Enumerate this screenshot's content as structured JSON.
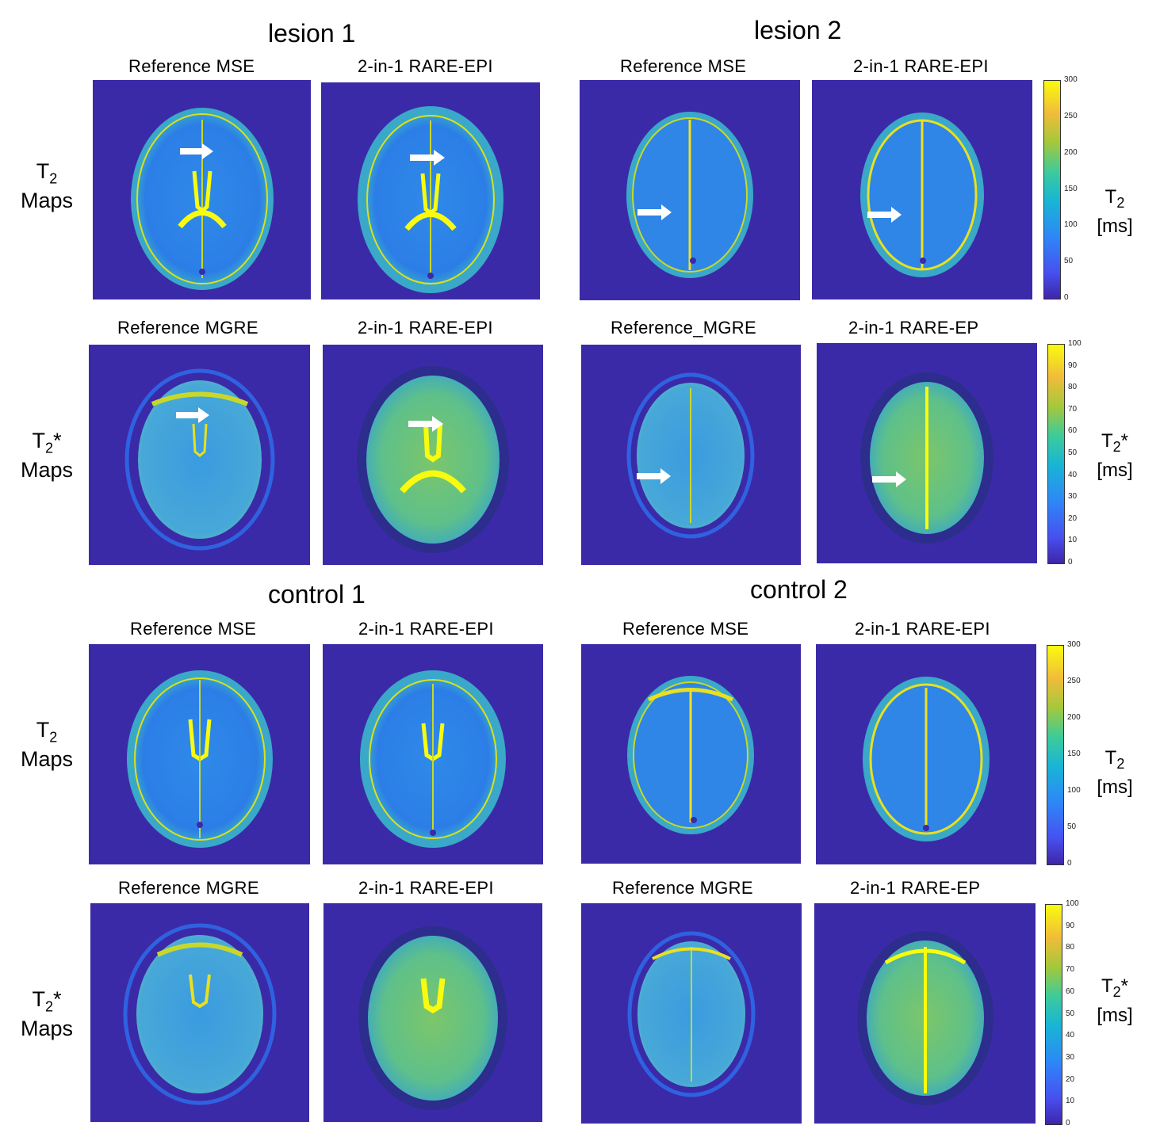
{
  "titles": {
    "lesion1": "lesion  1",
    "lesion2": "lesion 2",
    "control1": "control 1",
    "control2": "control 2"
  },
  "col_titles": {
    "l1_t2_ref": "Reference MSE",
    "l1_t2_rare": "2-in-1 RARE-EPI",
    "l2_t2_ref": "Reference MSE",
    "l2_t2_rare": "2-in-1 RARE-EPI",
    "l1_t2s_ref": "Reference MGRE",
    "l1_t2s_rare": "2-in-1 RARE-EPI",
    "l2_t2s_ref": "Reference_MGRE",
    "l2_t2s_rare": "2-in-1 RARE-EP",
    "c1_t2_ref": "Reference MSE",
    "c1_t2_rare": "2-in-1 RARE-EPI",
    "c2_t2_ref": "Reference MSE",
    "c2_t2_rare": "2-in-1 RARE-EPI",
    "c1_t2s_ref": "Reference MGRE",
    "c1_t2s_rare": "2-in-1 RARE-EPI",
    "c2_t2s_ref": "Reference MGRE",
    "c2_t2s_rare": "2-in-1 RARE-EP"
  },
  "row_labels": {
    "t2_symbol": "T",
    "t2_sub": "2",
    "t2s_star": "*",
    "maps": "Maps"
  },
  "colorbars": {
    "t2_ticks": [
      "300",
      "250",
      "200",
      "150",
      "100",
      "50",
      "0"
    ],
    "t2s_ticks": [
      "100",
      "90",
      "80",
      "70",
      "60",
      "50",
      "40",
      "30",
      "20",
      "10",
      "0"
    ],
    "unit": "[ms]"
  },
  "colors": {
    "background": "#3b2aa8",
    "brain": "#2f86e8",
    "highlight": "#f9fb0e",
    "rim": "#34b0c8"
  }
}
